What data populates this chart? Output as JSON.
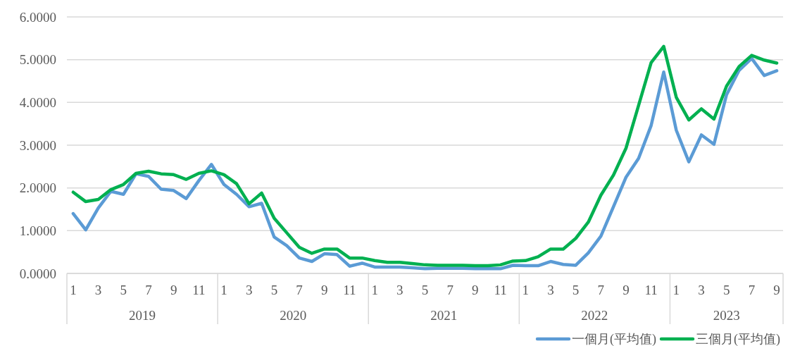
{
  "chart_data": {
    "type": "line",
    "categories": [
      "1",
      null,
      "3",
      null,
      "5",
      null,
      "7",
      null,
      "9",
      null,
      "11",
      null,
      "1",
      null,
      "3",
      null,
      "5",
      null,
      "7",
      null,
      "9",
      null,
      "11",
      null,
      "1",
      null,
      "3",
      null,
      "5",
      null,
      "7",
      null,
      "9",
      null,
      "11",
      null,
      "1",
      null,
      "3",
      null,
      "5",
      null,
      "7",
      null,
      "9",
      null,
      "11",
      null,
      "1",
      null,
      "3",
      null,
      "5",
      null,
      "7",
      null,
      "9"
    ],
    "series": [
      {
        "name": "一個月(平均值)",
        "color": "#5b9bd5",
        "values": [
          1.4,
          1.02,
          1.53,
          1.92,
          1.85,
          2.33,
          2.27,
          1.97,
          1.94,
          1.75,
          2.17,
          2.55,
          2.08,
          1.85,
          1.56,
          1.64,
          0.85,
          0.65,
          0.36,
          0.28,
          0.46,
          0.44,
          0.17,
          0.24,
          0.15,
          0.15,
          0.15,
          0.13,
          0.11,
          0.12,
          0.12,
          0.12,
          0.11,
          0.11,
          0.11,
          0.19,
          0.18,
          0.18,
          0.28,
          0.21,
          0.19,
          0.48,
          0.87,
          1.56,
          2.25,
          2.69,
          3.46,
          4.71,
          3.35,
          2.61,
          3.24,
          3.02,
          4.18,
          4.75,
          5.03,
          4.63,
          4.74
        ]
      },
      {
        "name": "三個月(平均值)",
        "color": "#00b050",
        "values": [
          1.9,
          1.68,
          1.73,
          1.96,
          2.08,
          2.34,
          2.39,
          2.33,
          2.31,
          2.2,
          2.34,
          2.4,
          2.31,
          2.1,
          1.63,
          1.88,
          1.29,
          0.95,
          0.61,
          0.47,
          0.57,
          0.57,
          0.36,
          0.36,
          0.3,
          0.26,
          0.26,
          0.23,
          0.2,
          0.19,
          0.19,
          0.19,
          0.18,
          0.18,
          0.2,
          0.29,
          0.3,
          0.39,
          0.57,
          0.57,
          0.82,
          1.2,
          1.83,
          2.3,
          2.93,
          3.93,
          4.93,
          5.31,
          4.12,
          3.59,
          3.85,
          3.61,
          4.38,
          4.84,
          5.1,
          4.99,
          4.92
        ]
      }
    ],
    "ylim": [
      0,
      6
    ],
    "yticks": [
      {
        "value": 0,
        "label": "0.0000"
      },
      {
        "value": 1,
        "label": "1.0000"
      },
      {
        "value": 2,
        "label": "2.0000"
      },
      {
        "value": 3,
        "label": "3.0000"
      },
      {
        "value": 4,
        "label": "4.0000"
      },
      {
        "value": 5,
        "label": "5.0000"
      },
      {
        "value": 6,
        "label": "6.0000"
      }
    ],
    "grid": "y",
    "legend": "bottom right",
    "line_style": "solid",
    "annotations": [
      "2019",
      "2020",
      "2021",
      "2022",
      "2023"
    ]
  }
}
